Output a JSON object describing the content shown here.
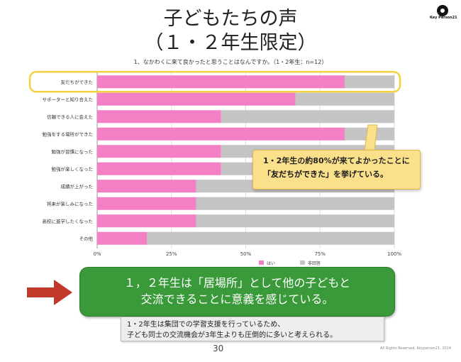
{
  "header": {
    "title_line1": "子どもたちの声",
    "title_line2": "（１・２年生限定）",
    "logo_text": "Key Person21"
  },
  "question": "1、なかわくに来て良かったと思うことはなんですか。（1・2年生：n=12）",
  "chart_data": {
    "type": "bar",
    "orientation": "horizontal",
    "stacked": true,
    "categories": [
      "友だちができた",
      "サポーターと知り合えた",
      "信頼できる人に会えた",
      "勉強をする場所ができた",
      "勉強が習慣になった",
      "勉強が楽しくなった",
      "成績が上がった",
      "将来が楽しみになった",
      "高校に進学したくなった",
      "その他"
    ],
    "series": [
      {
        "name": "はい",
        "color": "#f47fc5",
        "values": [
          83.3,
          66.7,
          41.7,
          83.3,
          41.7,
          41.7,
          33.3,
          33.3,
          33.3,
          16.7
        ]
      },
      {
        "name": "非回答",
        "color": "#c4c4c4",
        "values": [
          16.7,
          33.3,
          58.3,
          16.7,
          58.3,
          58.3,
          66.7,
          66.7,
          66.7,
          83.3
        ]
      }
    ],
    "xlim": [
      0,
      100
    ],
    "x_ticks": [
      "0%",
      "25%",
      "50%",
      "75%",
      "100%"
    ],
    "legend_position": "bottom-right",
    "highlighted_category": "友だちができた",
    "highlight_color": "#f2d33f"
  },
  "callout": {
    "line1": "1・2年生の約80%が来てよかったことに",
    "line2_strong": "「友だちができた」",
    "line2_rest": "を挙げている。"
  },
  "banner": {
    "line1": "１，２年生は「居場所」として他の子どもと",
    "line2": "交流できることに意義を感じている。"
  },
  "note": {
    "line1": "1・2年生は集団での学習支援を行っているため、",
    "line2": "子ども同士の交流機会が3年生よりも圧倒的に多いと考えられる。"
  },
  "footer": {
    "page_number": "30",
    "copyright": "All Rights Reserved, Keyperson21, 2014"
  },
  "colors": {
    "arrow": "#c0392b",
    "banner": "#3a9a3a"
  }
}
